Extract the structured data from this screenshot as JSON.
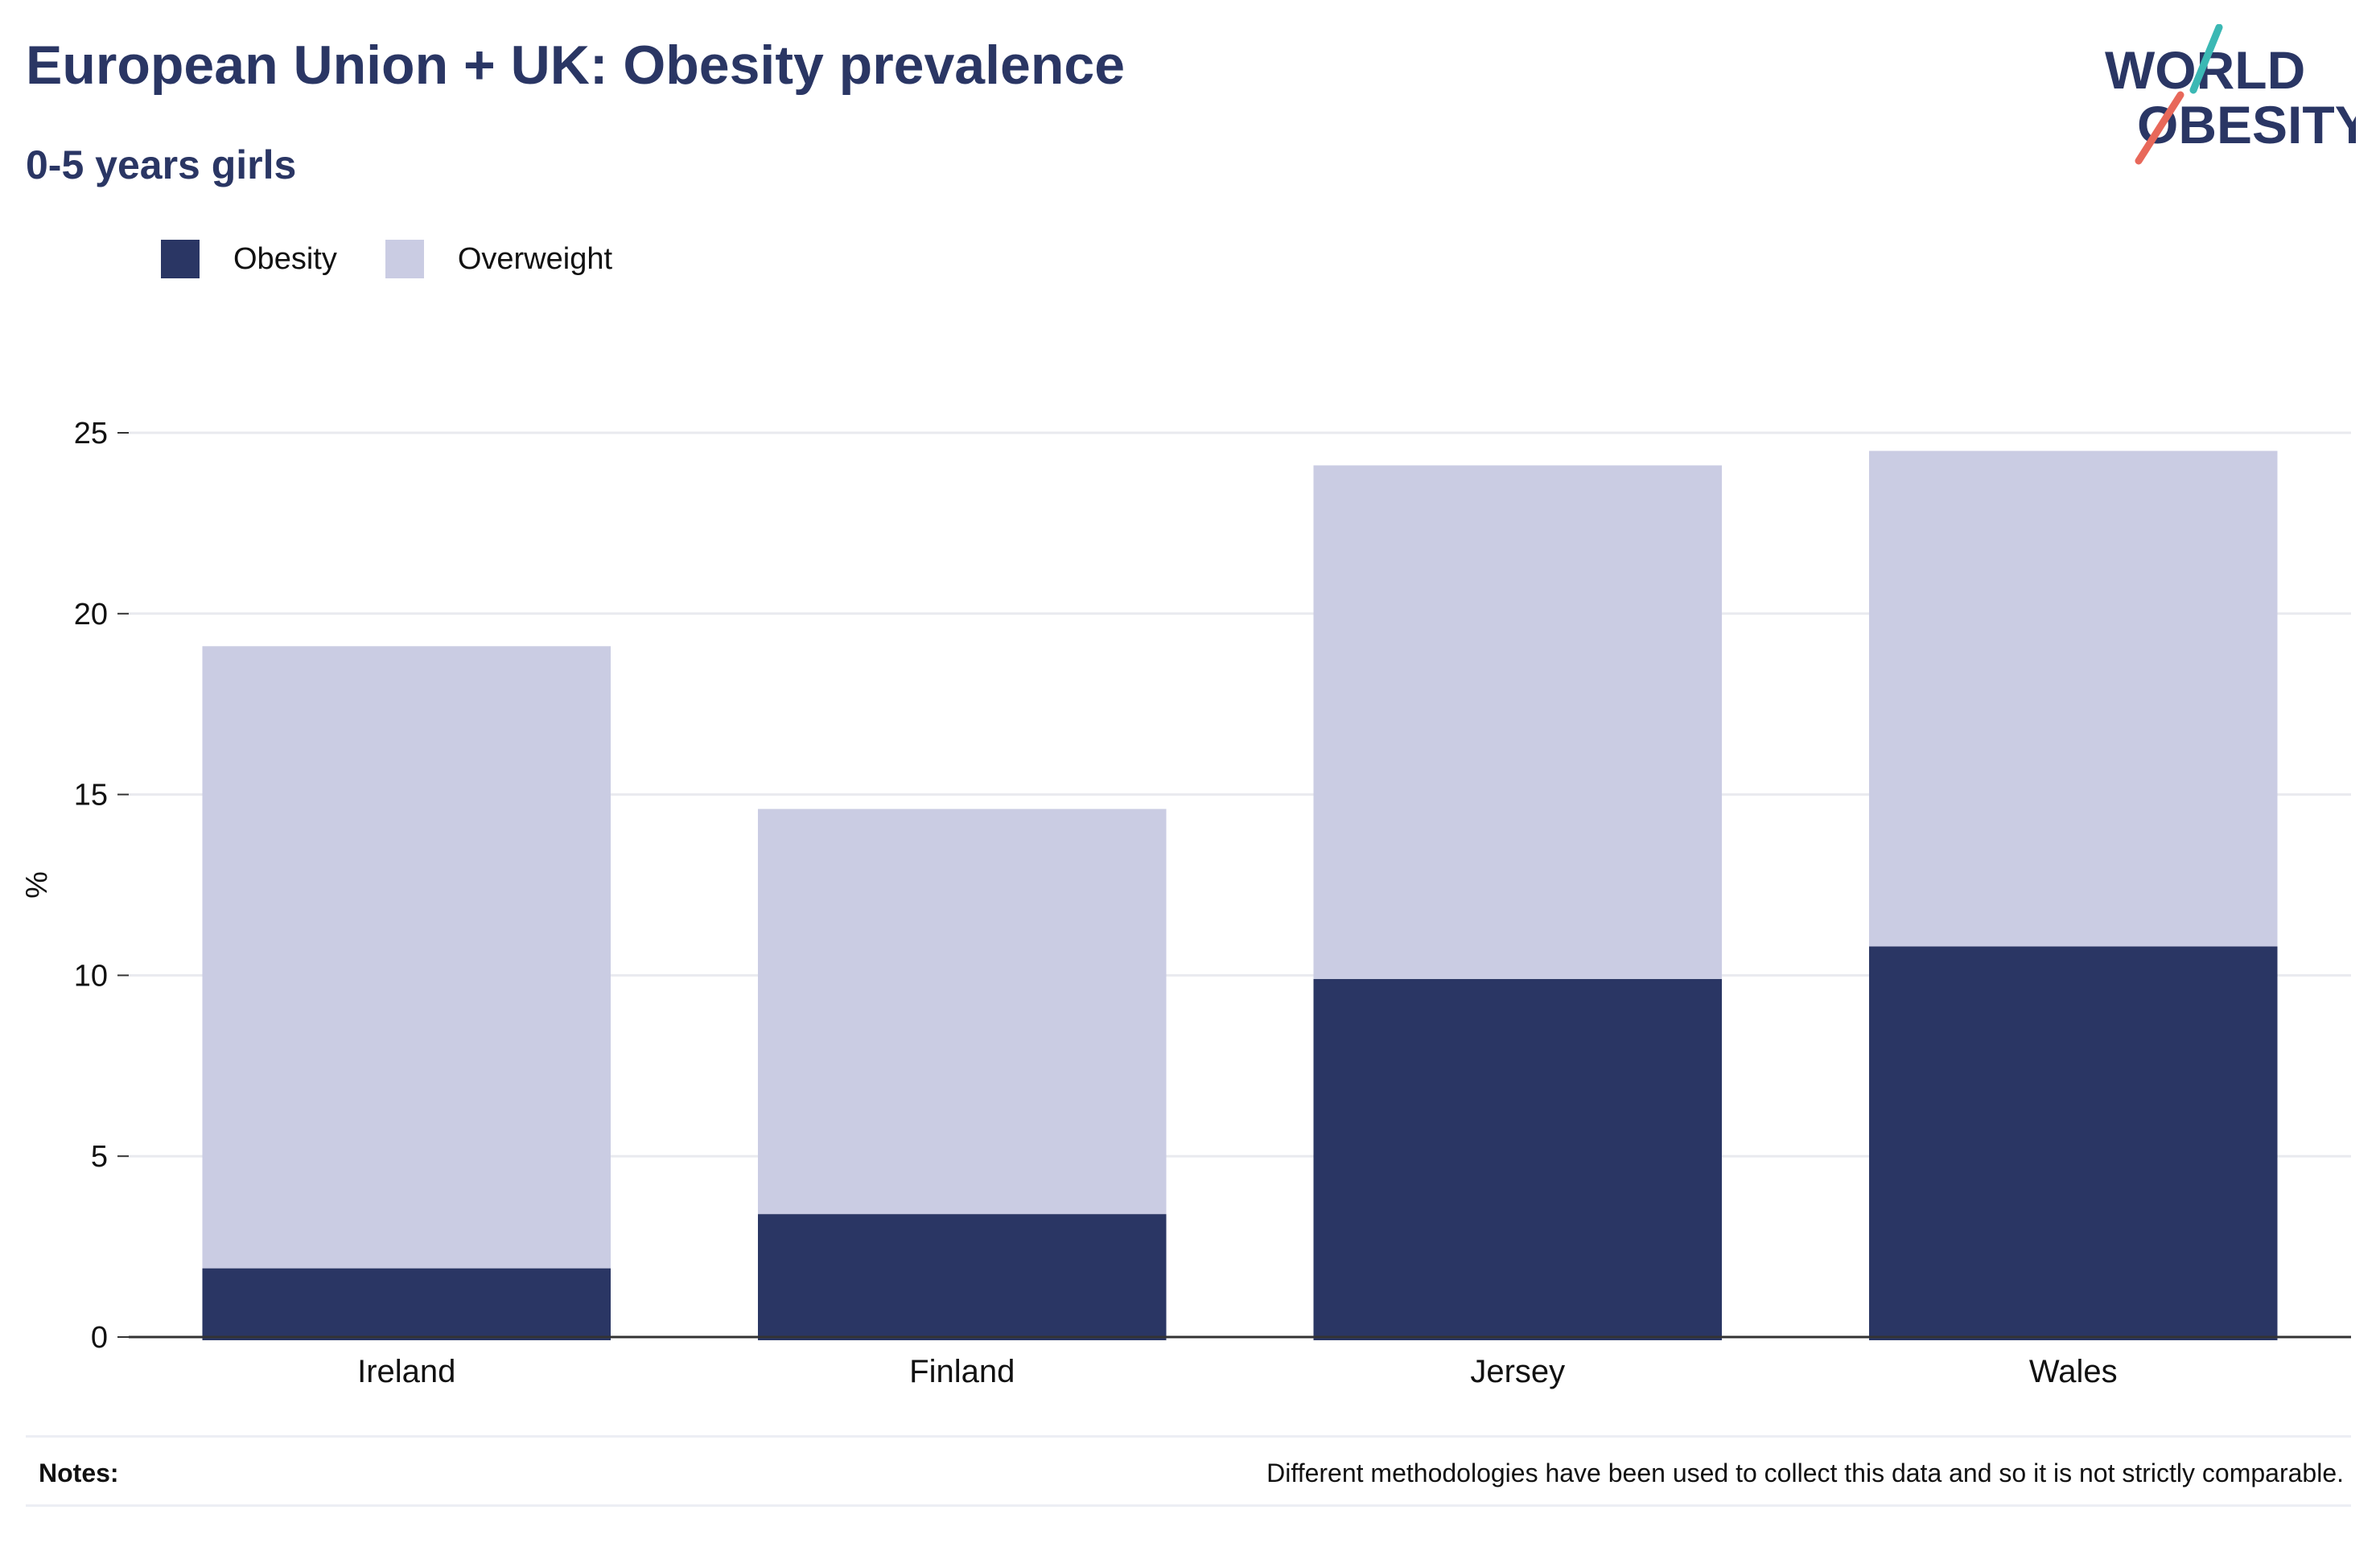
{
  "header": {
    "title": "European Union + UK: Obesity prevalence",
    "subtitle": "0-5 years girls"
  },
  "logo": {
    "line1": "WORLD",
    "line2": "OBESITY"
  },
  "legend": {
    "items": [
      {
        "label": "Obesity",
        "color": "#2a3664"
      },
      {
        "label": "Overweight",
        "color": "#cacce3"
      }
    ]
  },
  "notes": {
    "label": "Notes:",
    "text": "Different methodologies have been used to collect this data and so it is not strictly comparable."
  },
  "chart_data": {
    "type": "bar",
    "stacked": true,
    "categories": [
      "Ireland",
      "Finland",
      "Jersey",
      "Wales"
    ],
    "series": [
      {
        "name": "Obesity",
        "values": [
          1.9,
          3.4,
          9.9,
          10.8
        ],
        "color": "#2a3664"
      },
      {
        "name": "Overweight",
        "values": [
          17.2,
          11.2,
          14.2,
          13.7
        ],
        "color": "#cacce3"
      }
    ],
    "ylabel": "%",
    "xlabel": "",
    "ylim": [
      0,
      25
    ],
    "yticks": [
      0,
      5,
      10,
      15,
      20,
      25
    ],
    "grid": true,
    "legend_position": "top-left"
  }
}
